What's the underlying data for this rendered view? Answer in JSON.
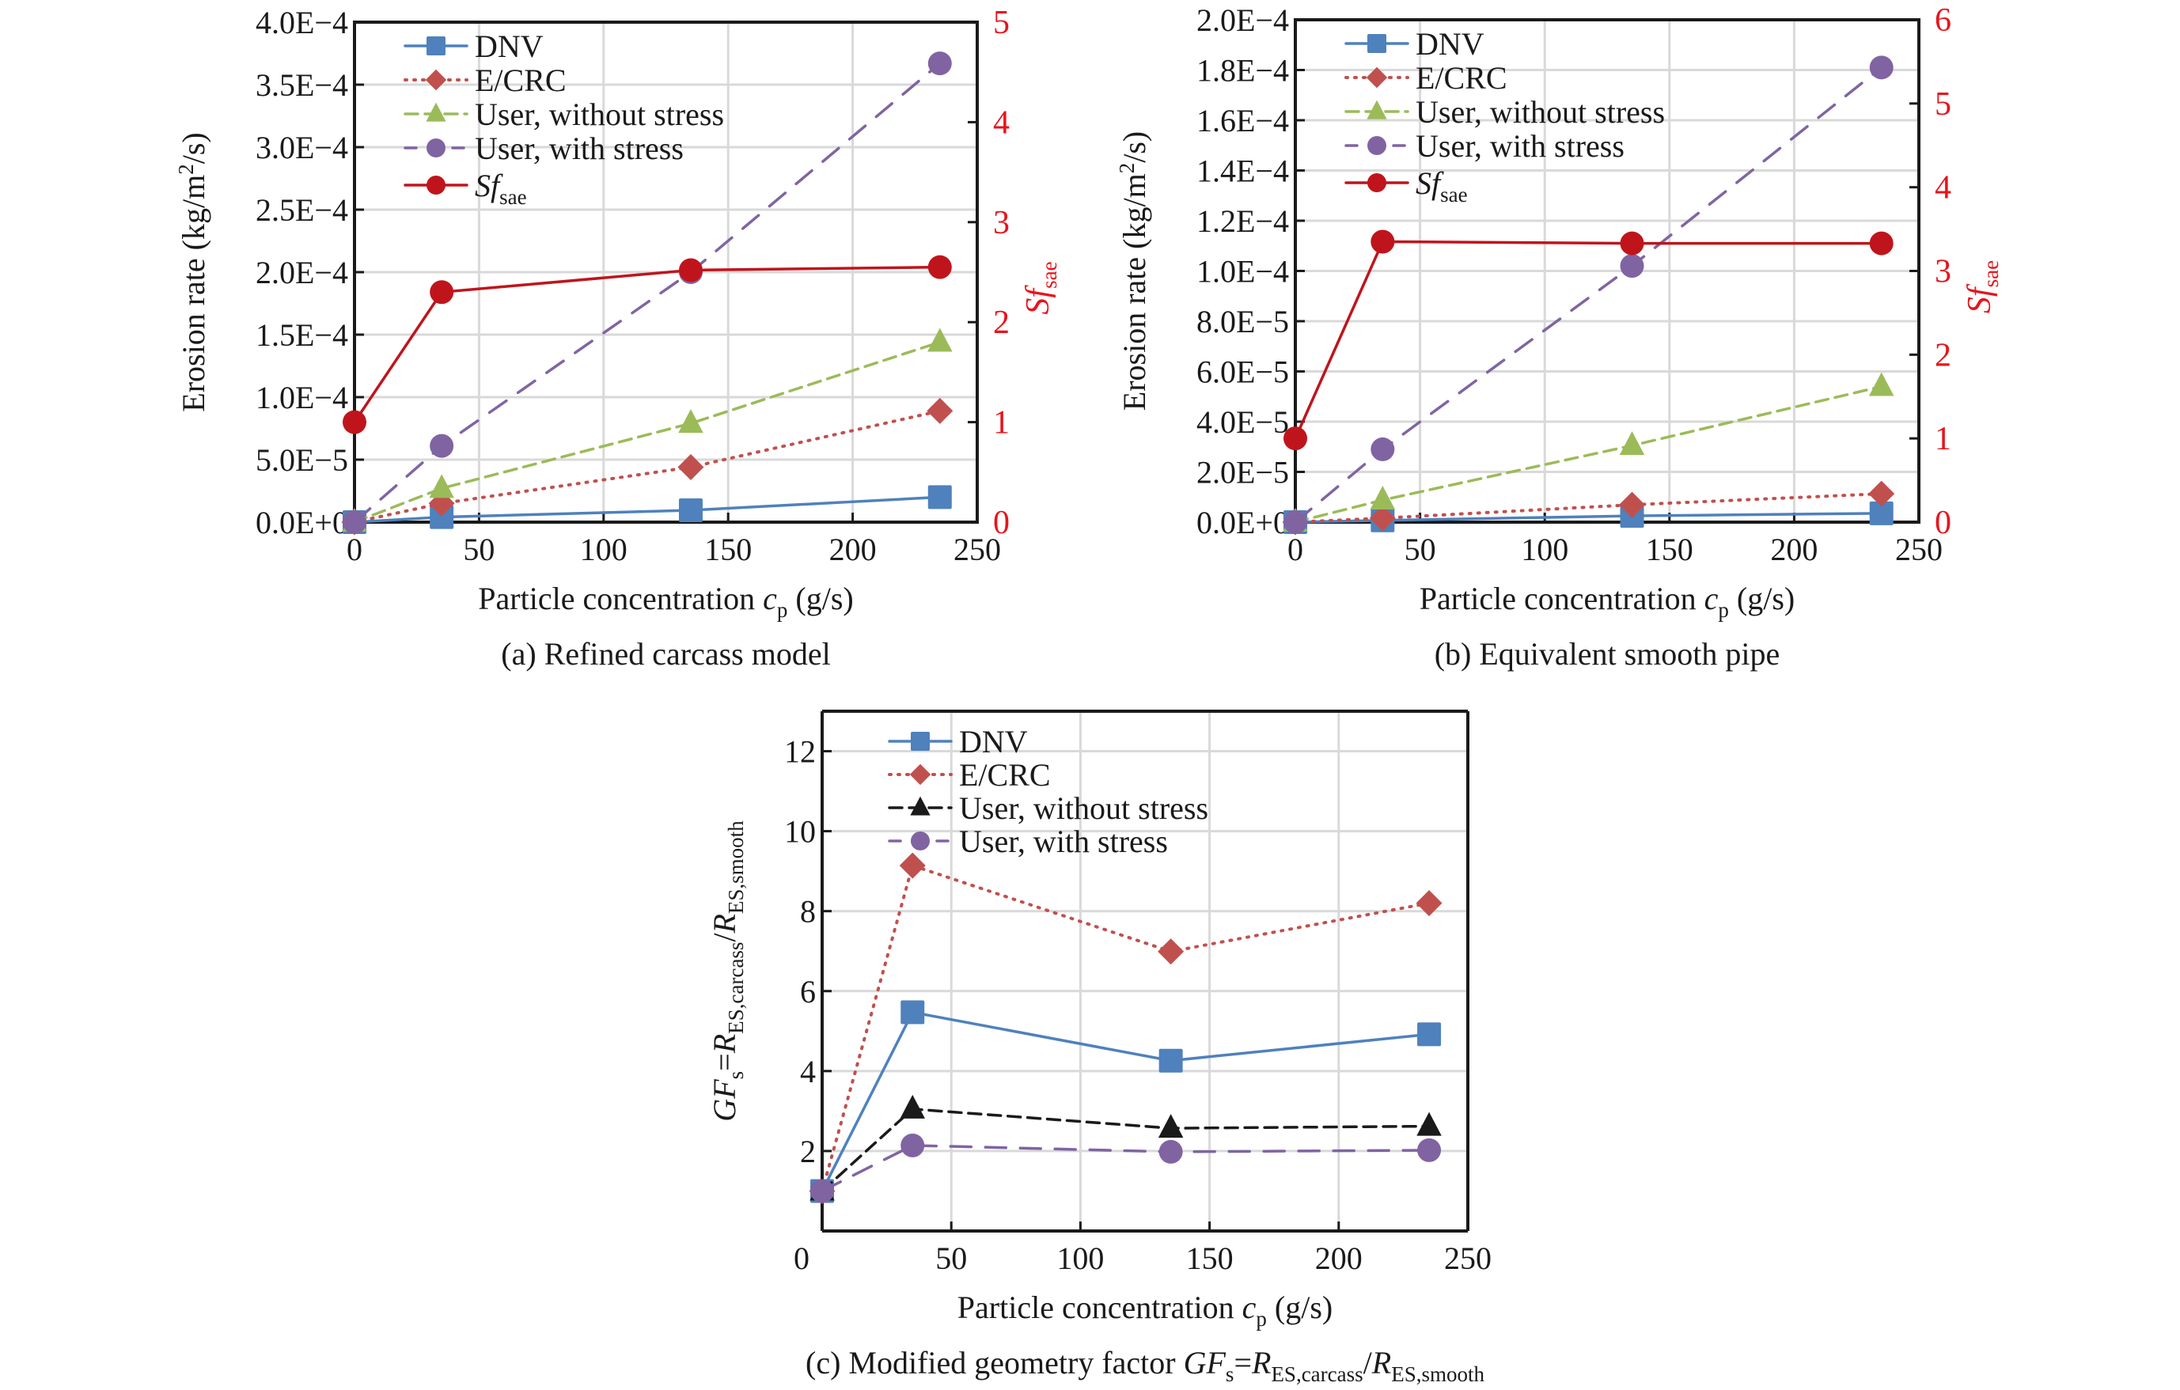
{
  "chart_data": [
    {
      "id": "a",
      "type": "line",
      "caption": "(a) Refined carcass model",
      "xlabel": {
        "main": "Particle concentration ",
        "var": "c",
        "sub": "p",
        "unit": " (g/s)"
      },
      "ylabel": "Erosion rate (kg/m²/s)",
      "y2label": {
        "main": "Sf",
        "sub": "sae"
      },
      "xlim": [
        0,
        250
      ],
      "xticks": [
        0,
        50,
        100,
        150,
        200,
        250
      ],
      "ylim": [
        0,
        0.0004
      ],
      "yticks": [
        0,
        5e-05,
        0.0001,
        0.00015,
        0.0002,
        0.00025,
        0.0003,
        0.00035,
        0.0004
      ],
      "ytick_labels": [
        "0.0E+0",
        "5.0E−5",
        "1.0E−4",
        "1.5E−4",
        "2.0E−4",
        "2.5E−4",
        "3.0E−4",
        "3.5E−4",
        "4.0E−4"
      ],
      "y2lim": [
        0,
        5
      ],
      "y2ticks": [
        0,
        1,
        2,
        3,
        4,
        5
      ],
      "grid": true,
      "legend_position": "top-left",
      "x": [
        0,
        35,
        135,
        235
      ],
      "series": [
        {
          "name": "DNV",
          "axis": "left",
          "marker": "square",
          "style": "solid",
          "color": "#4f81bd",
          "values": [
            0,
            4e-06,
            9.5e-06,
            2e-05
          ]
        },
        {
          "name": "E/CRC",
          "axis": "left",
          "marker": "diamond",
          "style": "dotted",
          "color": "#c0504d",
          "values": [
            0,
            1.5e-05,
            4.4e-05,
            8.9e-05
          ]
        },
        {
          "name": "User, without stress",
          "axis": "left",
          "marker": "triangle",
          "style": "dashed",
          "color": "#9bbb59",
          "values": [
            0,
            2.7e-05,
            7.9e-05,
            0.000144
          ]
        },
        {
          "name": "User, with stress",
          "axis": "left",
          "marker": "circle",
          "style": "longdash",
          "color": "#8064a2",
          "values": [
            0,
            6.1e-05,
            0.0002,
            0.000367
          ]
        },
        {
          "name": "Sf_sae",
          "label_main": "Sf",
          "label_sub": "sae",
          "axis": "right",
          "marker": "circle",
          "style": "solid",
          "color": "#c0141c",
          "values": [
            1.0,
            2.3,
            2.52,
            2.55
          ]
        }
      ]
    },
    {
      "id": "b",
      "type": "line",
      "caption": "(b) Equivalent smooth pipe",
      "xlabel": {
        "main": "Particle concentration ",
        "var": "c",
        "sub": "p",
        "unit": " (g/s)"
      },
      "ylabel": "Erosion rate (kg/m²/s)",
      "y2label": {
        "main": "Sf",
        "sub": "sae"
      },
      "xlim": [
        0,
        250
      ],
      "xticks": [
        0,
        50,
        100,
        150,
        200,
        250
      ],
      "ylim": [
        0,
        0.0002
      ],
      "yticks": [
        0,
        2e-05,
        4e-05,
        6e-05,
        8e-05,
        0.0001,
        0.00012,
        0.00014,
        0.00016,
        0.00018,
        0.0002
      ],
      "ytick_labels": [
        "0.0E+0",
        "2.0E−5",
        "4.0E−5",
        "6.0E−5",
        "8.0E−5",
        "1.0E−4",
        "1.2E−4",
        "1.4E−4",
        "1.6E−4",
        "1.8E−4",
        "2.0E−4"
      ],
      "y2lim": [
        0,
        6
      ],
      "y2ticks": [
        0,
        1,
        2,
        3,
        4,
        5,
        6
      ],
      "grid": true,
      "legend_position": "top-left",
      "x": [
        0,
        35,
        135,
        235
      ],
      "series": [
        {
          "name": "DNV",
          "axis": "left",
          "marker": "square",
          "style": "solid",
          "color": "#4f81bd",
          "values": [
            0,
            7e-07,
            2.5e-06,
            3.5e-06
          ]
        },
        {
          "name": "E/CRC",
          "axis": "left",
          "marker": "diamond",
          "style": "dotted",
          "color": "#c0504d",
          "values": [
            0,
            1.6e-06,
            6.9e-06,
            1.13e-05
          ]
        },
        {
          "name": "User, without stress",
          "axis": "left",
          "marker": "triangle",
          "style": "dashed",
          "color": "#9bbb59",
          "values": [
            0,
            8.8e-06,
            3.05e-05,
            5.4e-05
          ]
        },
        {
          "name": "User, with stress",
          "axis": "left",
          "marker": "circle",
          "style": "longdash",
          "color": "#8064a2",
          "values": [
            0,
            2.9e-05,
            0.000102,
            0.000181
          ]
        },
        {
          "name": "Sf_sae",
          "label_main": "Sf",
          "label_sub": "sae",
          "axis": "right",
          "marker": "circle",
          "style": "solid",
          "color": "#c0141c",
          "values": [
            1.0,
            3.35,
            3.33,
            3.33
          ]
        }
      ]
    },
    {
      "id": "c",
      "type": "line",
      "caption": {
        "prefix": "(c) Modified geometry factor ",
        "expr": [
          [
            "GF",
            "i"
          ],
          [
            "s",
            "sub"
          ],
          [
            "=",
            "n"
          ],
          [
            "R",
            "i"
          ],
          [
            "ES,carcass",
            "sub"
          ],
          [
            "/",
            "n"
          ],
          [
            "R",
            "i"
          ],
          [
            "ES,smooth",
            "sub"
          ]
        ]
      },
      "xlabel": {
        "main": "Particle concentration ",
        "var": "c",
        "sub": "p",
        "unit": " (g/s)"
      },
      "ylabel": [
        [
          "GF",
          "i"
        ],
        [
          "s",
          "sub"
        ],
        [
          "=",
          "n"
        ],
        [
          "R",
          "i"
        ],
        [
          "ES,carcass",
          "sub"
        ],
        [
          "/",
          "n"
        ],
        [
          "R",
          "i"
        ],
        [
          "ES,smooth",
          "sub"
        ]
      ],
      "xlim": [
        0,
        250
      ],
      "xticks": [
        0,
        50,
        100,
        150,
        200,
        250
      ],
      "ylim": [
        0,
        13
      ],
      "yticks": [
        2,
        4,
        6,
        8,
        10,
        12
      ],
      "ytick_labels": [
        "2",
        "4",
        "6",
        "8",
        "10",
        "12"
      ],
      "grid": true,
      "legend_position": "top-left",
      "x": [
        0,
        35,
        135,
        235
      ],
      "series": [
        {
          "name": "DNV",
          "marker": "square",
          "style": "solid",
          "color": "#4f81bd",
          "values": [
            1.0,
            5.47,
            4.26,
            4.92
          ]
        },
        {
          "name": "E/CRC",
          "marker": "diamond",
          "style": "dotted",
          "color": "#c0504d",
          "values": [
            1.0,
            9.14,
            6.99,
            8.2
          ]
        },
        {
          "name": "User, without stress",
          "marker": "triangle",
          "style": "dashed",
          "color": "#1a1a1a",
          "values": [
            1.0,
            3.05,
            2.57,
            2.62
          ]
        },
        {
          "name": "User, with stress",
          "marker": "circle",
          "style": "longdash",
          "color": "#8064a2",
          "values": [
            1.0,
            2.14,
            1.98,
            2.02
          ]
        }
      ]
    }
  ]
}
